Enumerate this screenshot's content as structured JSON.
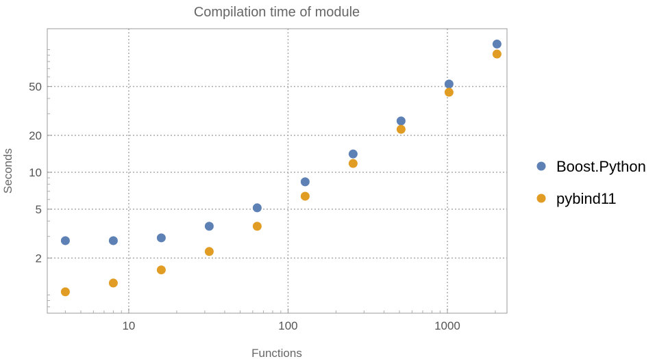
{
  "chart_data": {
    "type": "scatter",
    "title": "Compilation time of module",
    "xlabel": "Functions",
    "ylabel": "Seconds",
    "xscale": "log",
    "yscale": "log",
    "xlim": [
      3.08,
      2367
    ],
    "ylim": [
      0.71,
      148
    ],
    "grid": true,
    "legend_position": "right",
    "x_ticks": [
      {
        "value": 10,
        "label": "10"
      },
      {
        "value": 100,
        "label": "100"
      },
      {
        "value": 1000,
        "label": "1000"
      }
    ],
    "y_ticks": [
      {
        "value": 2,
        "label": "2"
      },
      {
        "value": 5,
        "label": "5"
      },
      {
        "value": 10,
        "label": "10"
      },
      {
        "value": 20,
        "label": "20"
      },
      {
        "value": 50,
        "label": "50"
      }
    ],
    "x": [
      4,
      8,
      16,
      32,
      64,
      128,
      256,
      512,
      1024,
      2048
    ],
    "series": [
      {
        "name": "Boost.Python",
        "color": "#5e81b5",
        "values": [
          2.77,
          2.77,
          2.92,
          3.63,
          5.13,
          8.36,
          14.1,
          26.2,
          52.4,
          111
        ]
      },
      {
        "name": "pybind11",
        "color": "#e19c24",
        "values": [
          1.06,
          1.25,
          1.6,
          2.26,
          3.63,
          6.38,
          11.8,
          22.4,
          44.9,
          92
        ]
      }
    ]
  }
}
